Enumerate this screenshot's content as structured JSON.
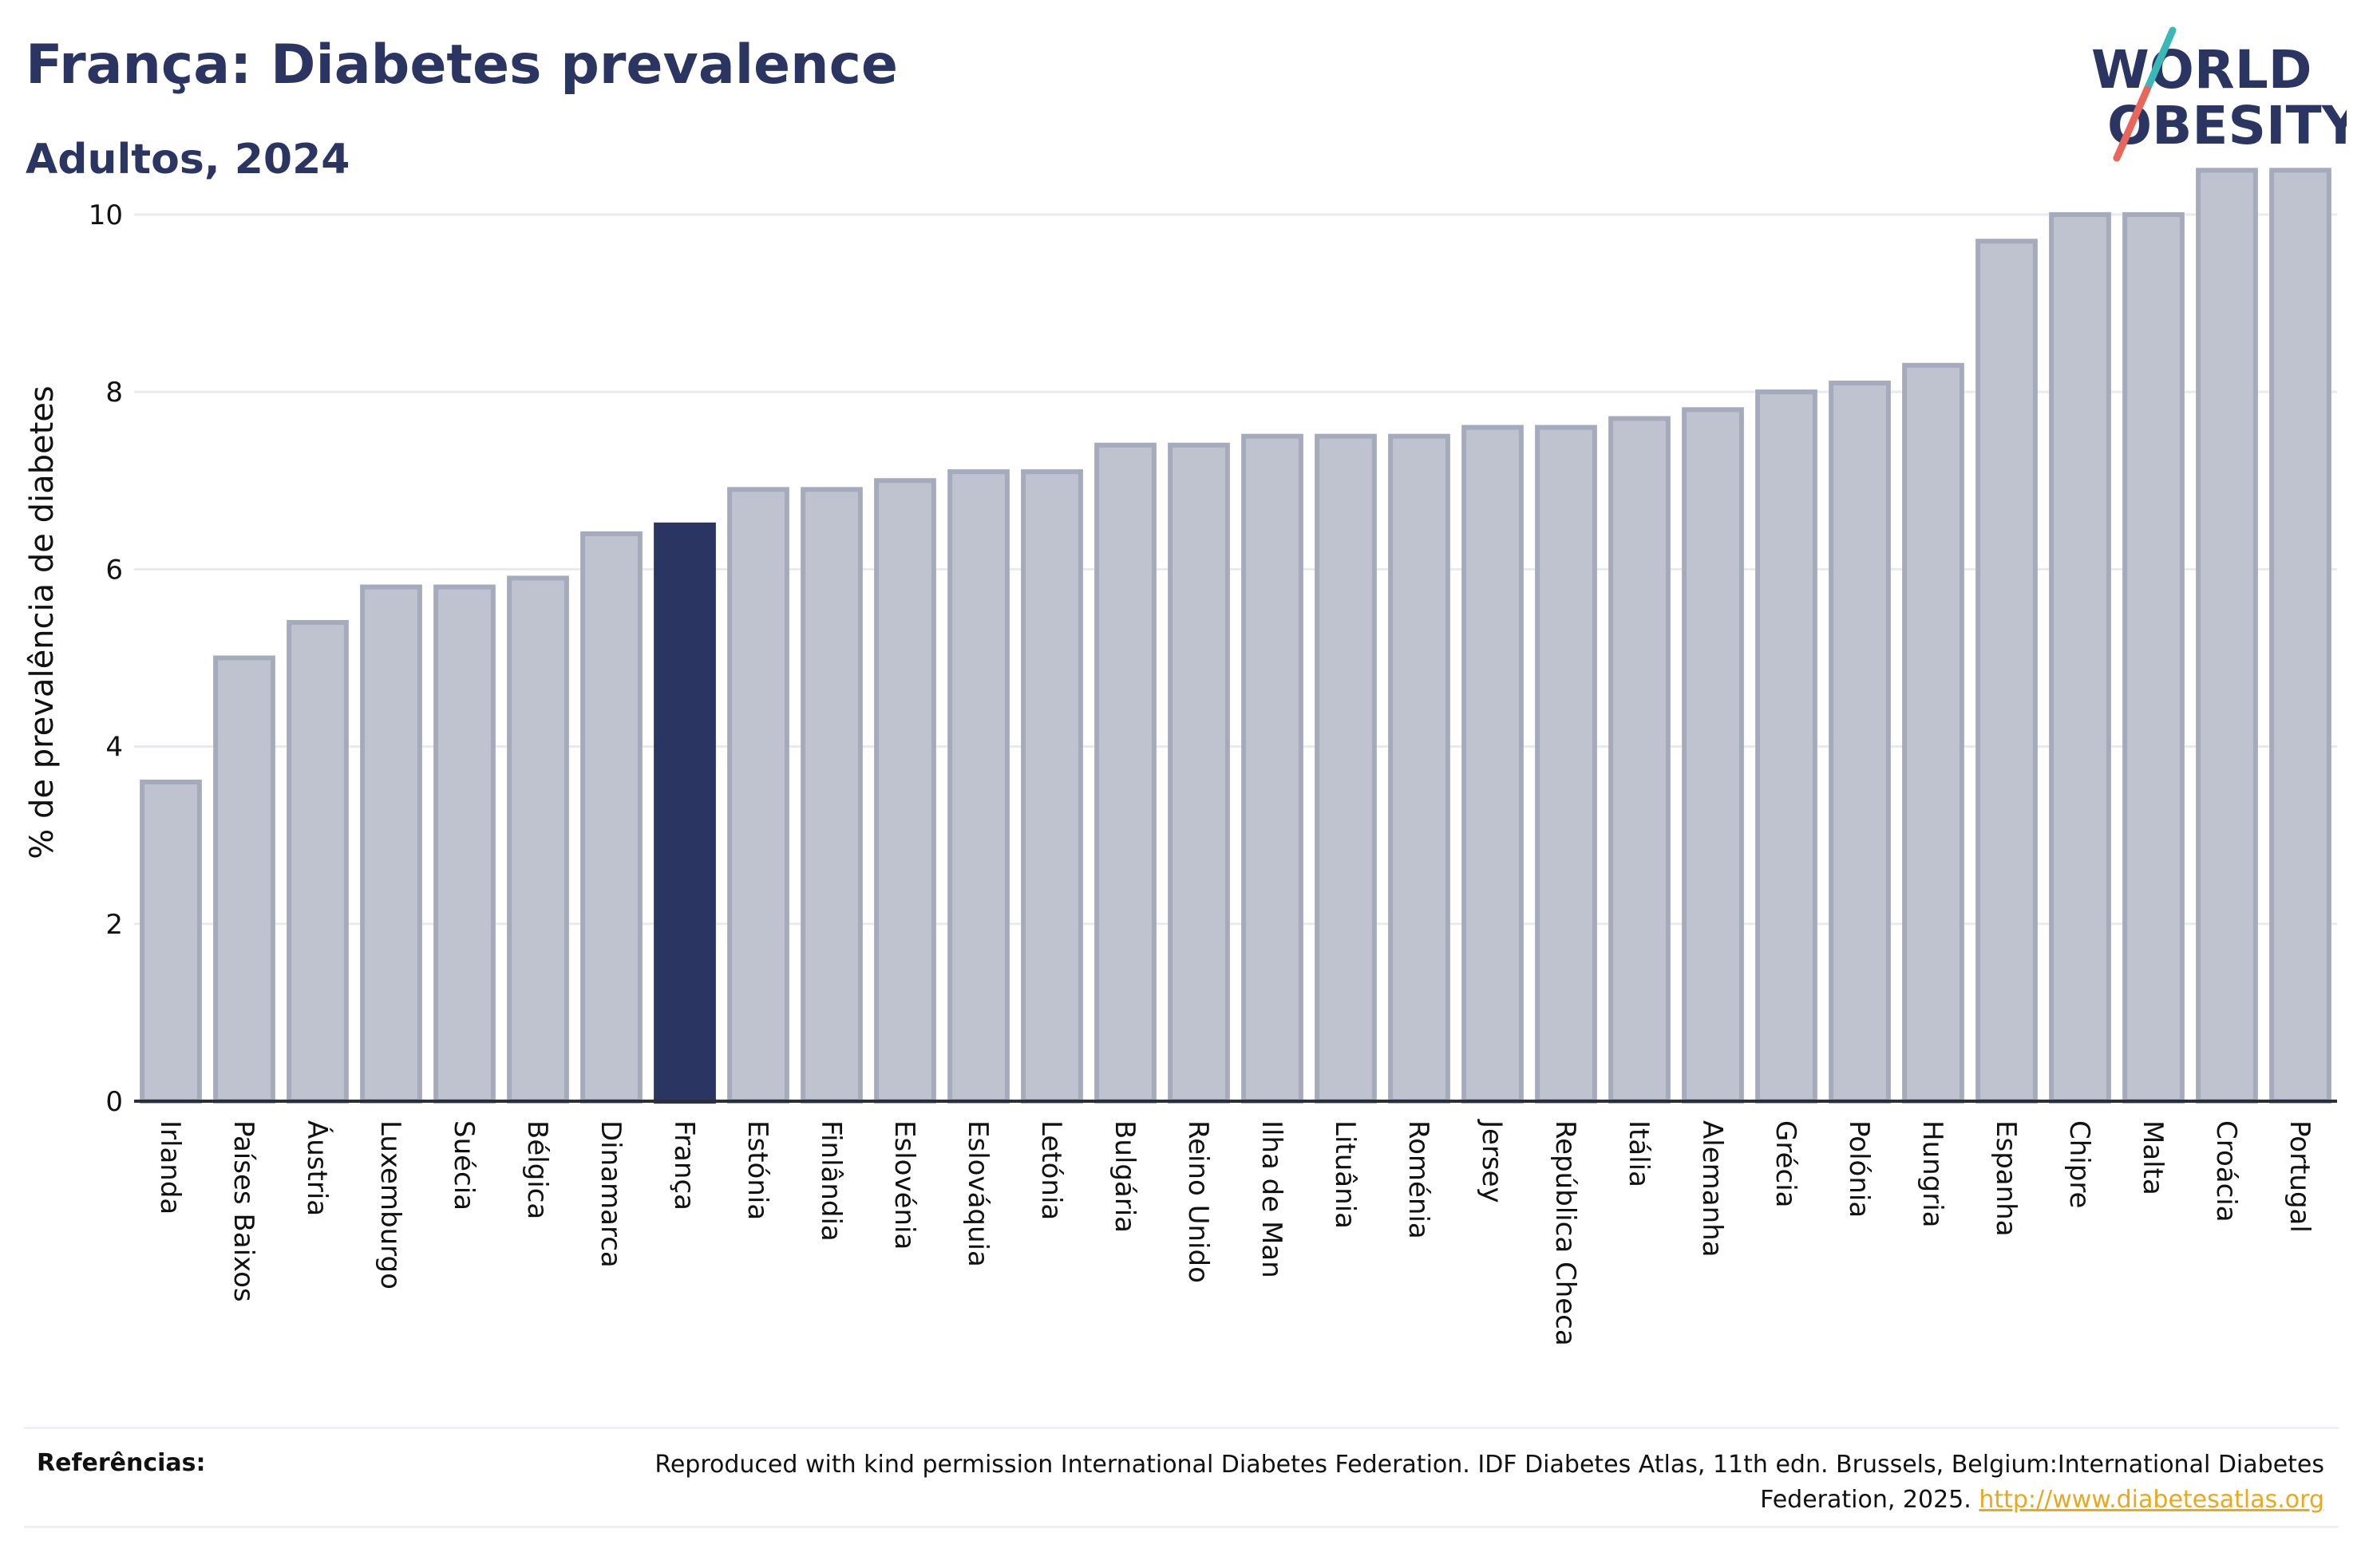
{
  "header": {
    "title": "França: Diabetes prevalence",
    "subtitle": "Adultos, 2024"
  },
  "logo": {
    "line1": "WORLD",
    "line2": "OBESITY",
    "icon": "world-obesity-logo"
  },
  "colors": {
    "bar_default": "#bfc2cf",
    "bar_border": "#a6aabd",
    "bar_highlight": "#2b3562",
    "title": "#2b3562",
    "link": "#e8a820",
    "logo_teal": "#3ab8b8",
    "logo_coral": "#e8675a"
  },
  "chart_data": {
    "type": "bar",
    "title": "França: Diabetes prevalence",
    "subtitle": "Adultos, 2024",
    "xlabel": "",
    "ylabel": "% de prevalência de diabetes",
    "ylim": [
      0,
      10.8
    ],
    "yticks": [
      0,
      2,
      4,
      6,
      8,
      10
    ],
    "grid": true,
    "highlight": "França",
    "categories": [
      "Irlanda",
      "Países Baixos",
      "Áustria",
      "Luxemburgo",
      "Suécia",
      "Bélgica",
      "Dinamarca",
      "França",
      "Estónia",
      "Finlândia",
      "Eslovénia",
      "Eslováquia",
      "Letónia",
      "Bulgária",
      "Reino Unido",
      "Ilha de Man",
      "Lituânia",
      "Roménia",
      "Jersey",
      "República Checa",
      "Itália",
      "Alemanha",
      "Grécia",
      "Polónia",
      "Hungria",
      "Espanha",
      "Chipre",
      "Malta",
      "Croácia",
      "Portugal"
    ],
    "values": [
      3.6,
      5.0,
      5.4,
      5.8,
      5.8,
      5.9,
      6.4,
      6.5,
      6.9,
      6.9,
      7.0,
      7.1,
      7.1,
      7.4,
      7.4,
      7.5,
      7.5,
      7.5,
      7.6,
      7.6,
      7.7,
      7.8,
      8.0,
      8.1,
      8.3,
      9.7,
      10.0,
      10.0,
      10.5,
      10.5
    ]
  },
  "footer": {
    "ref_label": "Referências:",
    "ref_text": "Reproduced with kind permission International Diabetes Federation. IDF Diabetes Atlas, 11th edn. Brussels, Belgium:International Diabetes Federation, 2025.",
    "ref_link": "http://www.diabetesatlas.org"
  }
}
